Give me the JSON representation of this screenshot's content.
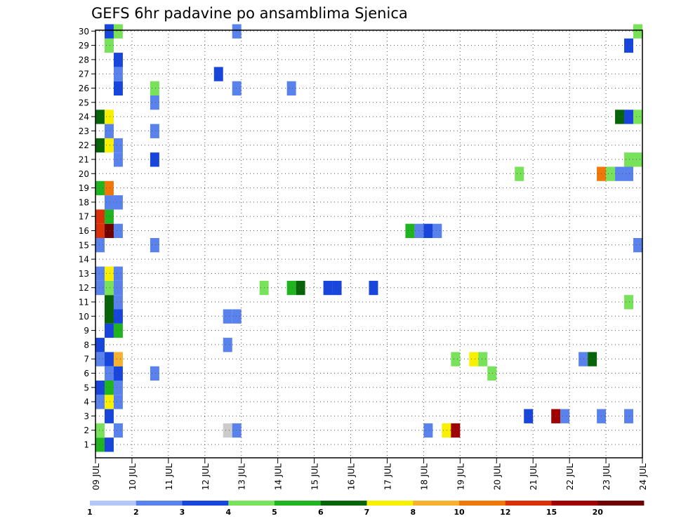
{
  "chart_data": {
    "type": "heatmap",
    "title": "GEFS 6hr padavine po ansamblima Sjenica",
    "xlabel": "",
    "ylabel": "",
    "x_tick_labels": [
      "09 JUL",
      "10 JUL",
      "11 JUL",
      "12 JUL",
      "13 JUL",
      "14 JUL",
      "15 JUL",
      "16 JUL",
      "17 JUL",
      "18 JUL",
      "19 JUL",
      "20 JUL",
      "21 JUL",
      "22 JUL",
      "23 JUL",
      "24 JUL"
    ],
    "x_range": [
      0,
      60
    ],
    "steps_per_day": 4,
    "y_tick_labels": [
      "1",
      "2",
      "3",
      "4",
      "5",
      "6",
      "7",
      "8",
      "9",
      "10",
      "11",
      "12",
      "13",
      "14",
      "15",
      "16",
      "17",
      "18",
      "19",
      "20",
      "21",
      "22",
      "23",
      "24",
      "25",
      "26",
      "27",
      "28",
      "29",
      "30"
    ],
    "y_range": [
      0,
      30
    ],
    "grid": true,
    "legend": {
      "position": "bottom",
      "labels": [
        "1",
        "2",
        "3",
        "4",
        "5",
        "6",
        "7",
        "8",
        "10",
        "12",
        "15",
        "20"
      ],
      "colors": [
        "#b4c8f8",
        "#5a82ec",
        "#1846dc",
        "#78e25a",
        "#20b420",
        "#086408",
        "#f8f000",
        "#f8b030",
        "#f07808",
        "#dc3008",
        "#a00000",
        "#6e0000"
      ]
    },
    "cells": [
      [
        0,
        0,
        4
      ],
      [
        1,
        0,
        2
      ],
      [
        0,
        1,
        3
      ],
      [
        2,
        1,
        1
      ],
      [
        14,
        1,
        14
      ],
      [
        15,
        1,
        1
      ],
      [
        36,
        1,
        1
      ],
      [
        38,
        1,
        6
      ],
      [
        39,
        1,
        10
      ],
      [
        1,
        2,
        2
      ],
      [
        47,
        2,
        2
      ],
      [
        50,
        2,
        10
      ],
      [
        51,
        2,
        1
      ],
      [
        55,
        2,
        1
      ],
      [
        58,
        2,
        1
      ],
      [
        0,
        3,
        1
      ],
      [
        1,
        3,
        6
      ],
      [
        2,
        3,
        1
      ],
      [
        0,
        4,
        2
      ],
      [
        1,
        4,
        4
      ],
      [
        2,
        4,
        1
      ],
      [
        1,
        5,
        1
      ],
      [
        2,
        5,
        2
      ],
      [
        6,
        5,
        1
      ],
      [
        43,
        5,
        3
      ],
      [
        0,
        6,
        1
      ],
      [
        1,
        6,
        2
      ],
      [
        2,
        6,
        7
      ],
      [
        39,
        6,
        3
      ],
      [
        41,
        6,
        6
      ],
      [
        42,
        6,
        3
      ],
      [
        53,
        6,
        1
      ],
      [
        54,
        6,
        5
      ],
      [
        0,
        7,
        2
      ],
      [
        14,
        7,
        1
      ],
      [
        1,
        8,
        2
      ],
      [
        2,
        8,
        4
      ],
      [
        1,
        9,
        5
      ],
      [
        2,
        9,
        2
      ],
      [
        14,
        9,
        1
      ],
      [
        15,
        9,
        1
      ],
      [
        1,
        10,
        5
      ],
      [
        2,
        10,
        1
      ],
      [
        58,
        10,
        3
      ],
      [
        0,
        11,
        1
      ],
      [
        1,
        11,
        3
      ],
      [
        2,
        11,
        1
      ],
      [
        18,
        11,
        3
      ],
      [
        21,
        11,
        4
      ],
      [
        22,
        11,
        5
      ],
      [
        25,
        11,
        2
      ],
      [
        26,
        11,
        2
      ],
      [
        30,
        11,
        2
      ],
      [
        0,
        12,
        1
      ],
      [
        1,
        12,
        6
      ],
      [
        2,
        12,
        1
      ],
      [
        0,
        14,
        1
      ],
      [
        6,
        14,
        1
      ],
      [
        59,
        14,
        1
      ],
      [
        0,
        15,
        9
      ],
      [
        1,
        15,
        11
      ],
      [
        2,
        15,
        1
      ],
      [
        34,
        15,
        4
      ],
      [
        35,
        15,
        1
      ],
      [
        36,
        15,
        2
      ],
      [
        37,
        15,
        1
      ],
      [
        0,
        16,
        9
      ],
      [
        1,
        16,
        4
      ],
      [
        1,
        17,
        1
      ],
      [
        2,
        17,
        1
      ],
      [
        0,
        18,
        4
      ],
      [
        1,
        18,
        8
      ],
      [
        46,
        19,
        3
      ],
      [
        55,
        19,
        8
      ],
      [
        56,
        19,
        3
      ],
      [
        57,
        19,
        1
      ],
      [
        58,
        19,
        1
      ],
      [
        2,
        20,
        1
      ],
      [
        6,
        20,
        2
      ],
      [
        58,
        20,
        3
      ],
      [
        59,
        20,
        3
      ],
      [
        0,
        21,
        5
      ],
      [
        1,
        21,
        6
      ],
      [
        2,
        21,
        1
      ],
      [
        1,
        22,
        1
      ],
      [
        6,
        22,
        1
      ],
      [
        0,
        23,
        5
      ],
      [
        1,
        23,
        6
      ],
      [
        57,
        23,
        5
      ],
      [
        58,
        23,
        2
      ],
      [
        59,
        23,
        3
      ],
      [
        6,
        24,
        1
      ],
      [
        2,
        25,
        2
      ],
      [
        6,
        25,
        3
      ],
      [
        15,
        25,
        1
      ],
      [
        21,
        25,
        1
      ],
      [
        2,
        26,
        1
      ],
      [
        13,
        26,
        2
      ],
      [
        2,
        27,
        2
      ],
      [
        1,
        28,
        3
      ],
      [
        58,
        28,
        2
      ],
      [
        1,
        29,
        2
      ],
      [
        2,
        29,
        3
      ],
      [
        15,
        29,
        1
      ],
      [
        59,
        29,
        3
      ]
    ]
  }
}
